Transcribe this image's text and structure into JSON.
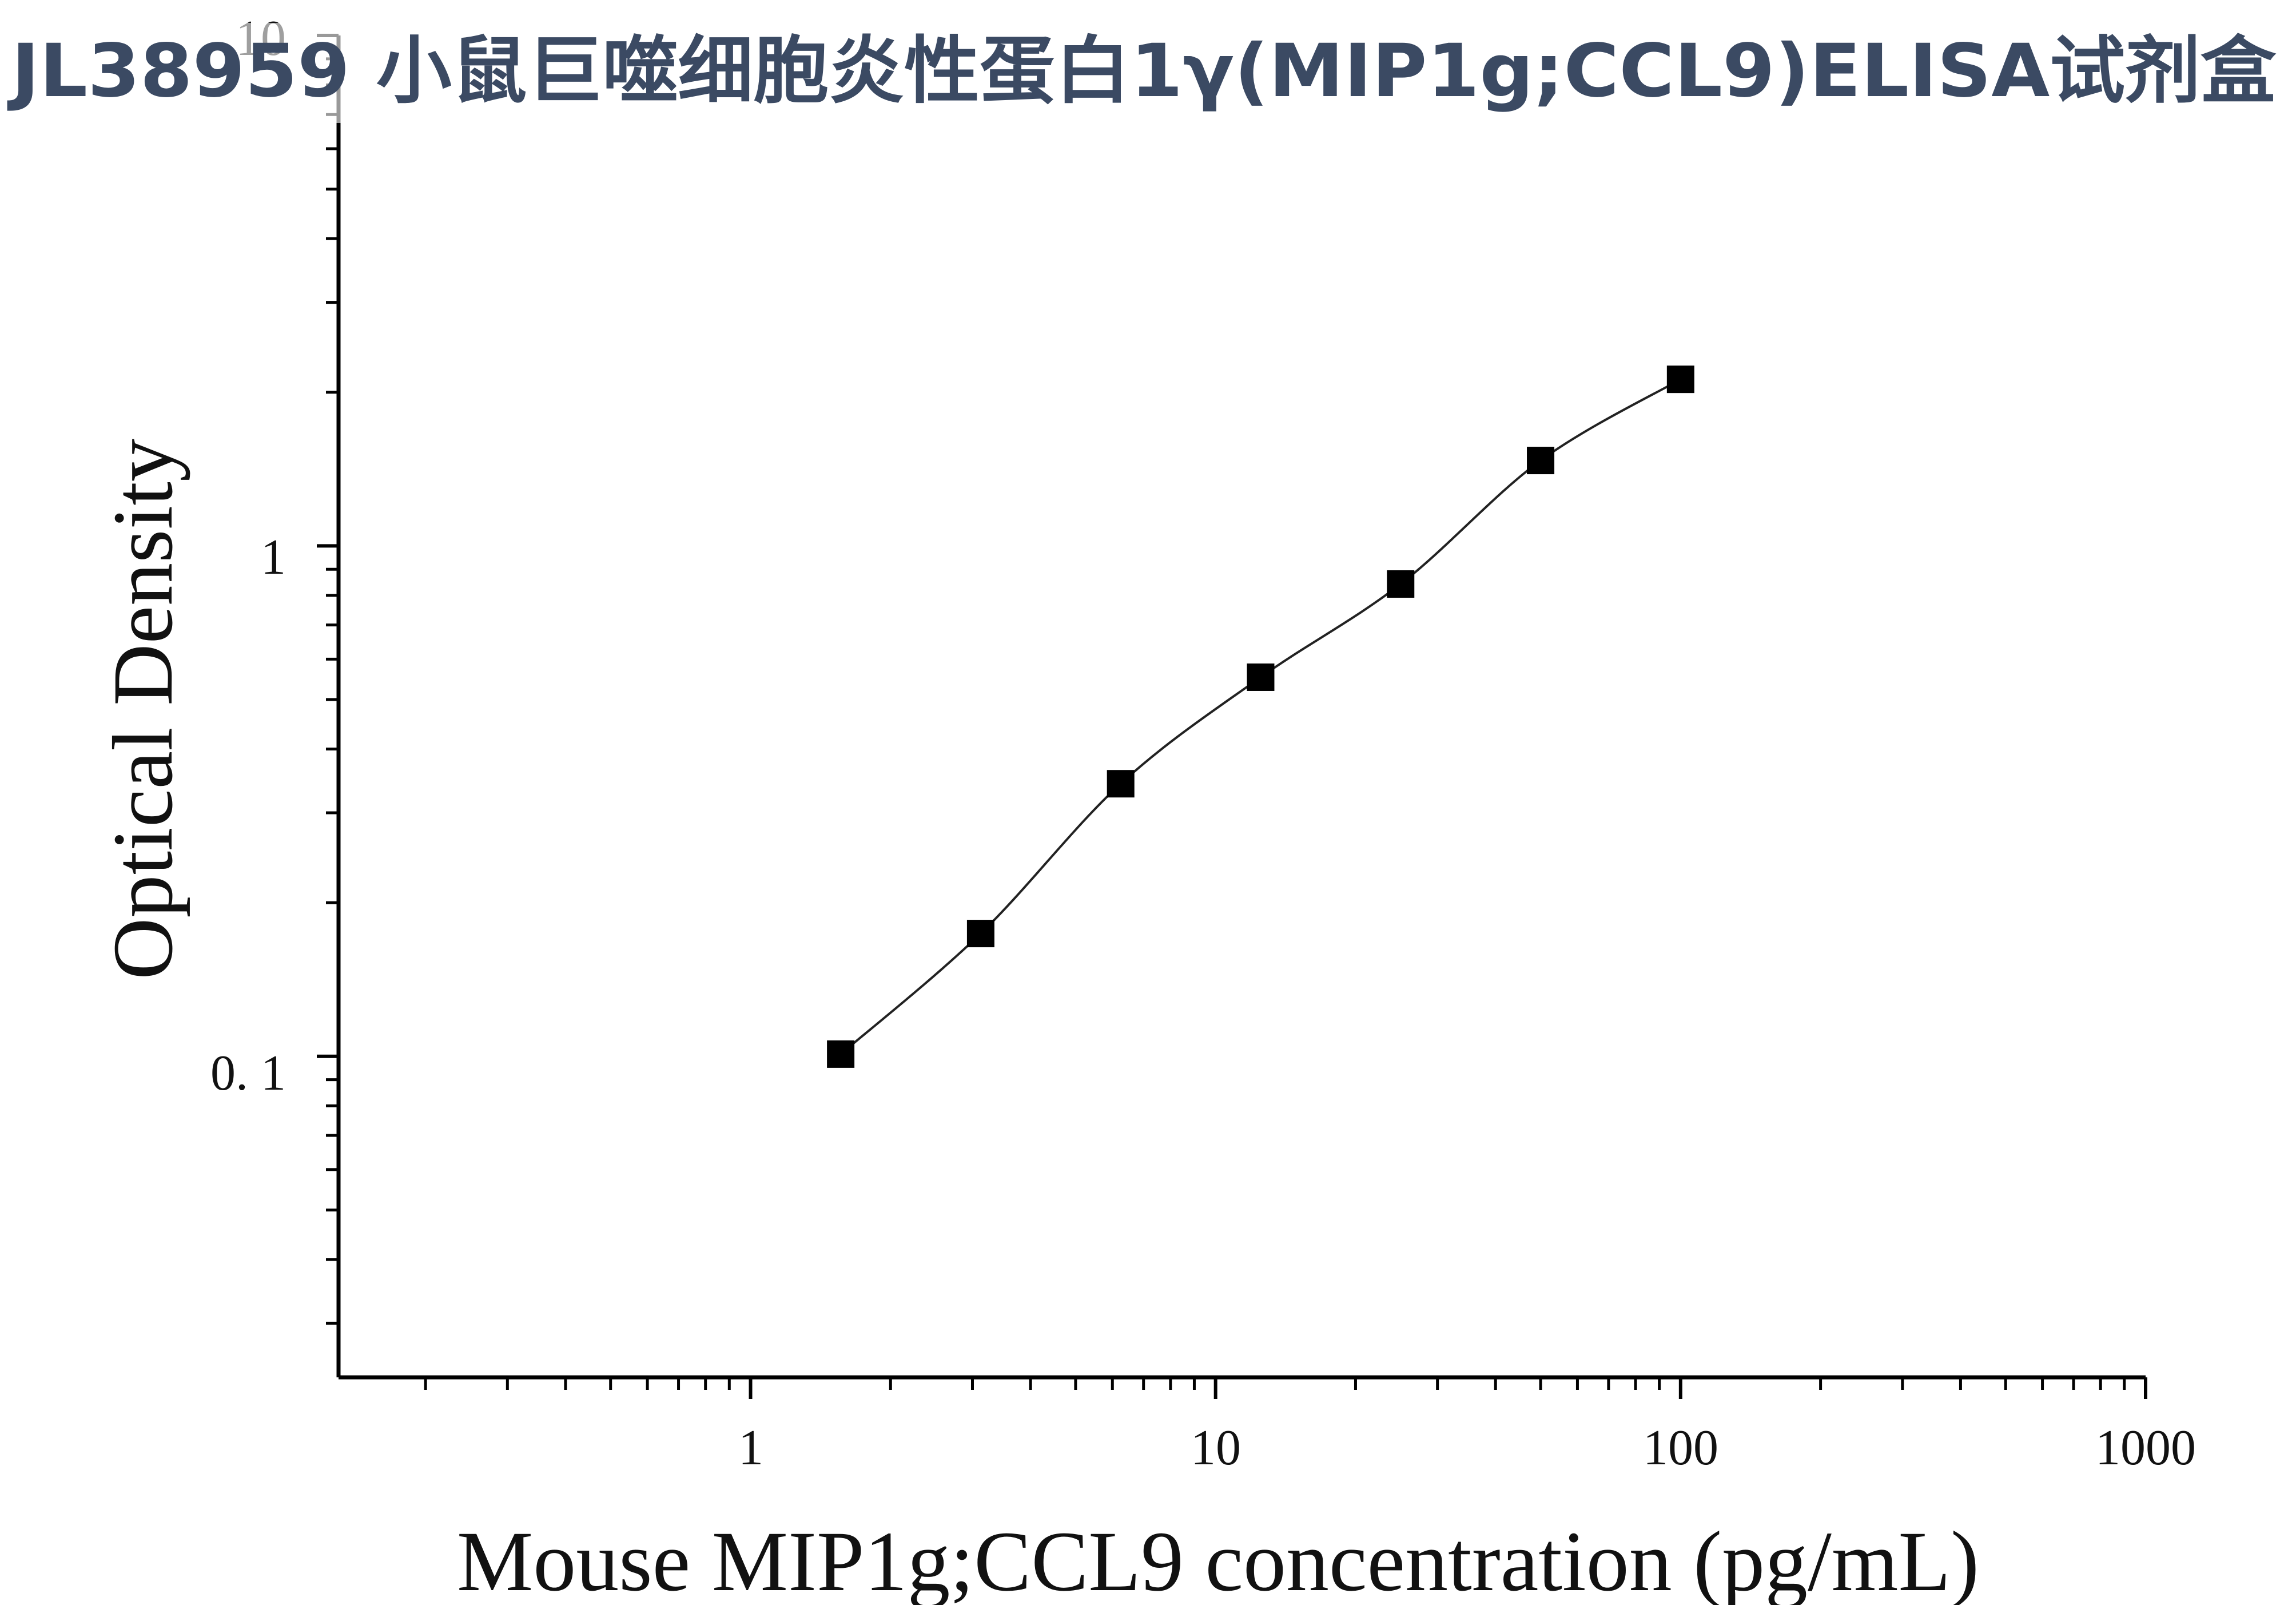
{
  "chart_data": {
    "type": "scatter",
    "title": "JL38959 小鼠巨噬细胞炎性蛋白1γ(MIP1g;CCL9)ELISA试剂盒",
    "xlabel": "Mouse  MIP1g;CCL9 concentration (pg/mL)",
    "ylabel": "Optical Density",
    "xscale": "log",
    "yscale": "log",
    "xlim": [
      0.13,
      1000
    ],
    "ylim": [
      0.0235,
      10
    ],
    "x_tick_labels": [
      "1",
      "10",
      "100",
      "1000"
    ],
    "y_tick_labels": [
      "0. 1",
      "1",
      "10"
    ],
    "grid": false,
    "marker": "square",
    "marker_color": "#000000",
    "line_color": "#222222",
    "points": [
      {
        "x": 1.5625,
        "y": 0.101
      },
      {
        "x": 3.125,
        "y": 0.174
      },
      {
        "x": 6.25,
        "y": 0.342
      },
      {
        "x": 12.5,
        "y": 0.553
      },
      {
        "x": 25,
        "y": 0.842
      },
      {
        "x": 50,
        "y": 1.47
      },
      {
        "x": 100,
        "y": 2.12
      }
    ],
    "fit_curve": true
  }
}
